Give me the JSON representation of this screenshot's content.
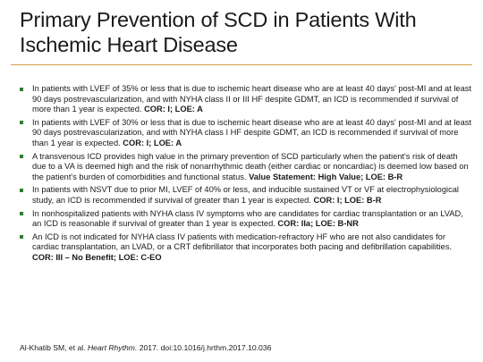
{
  "slide": {
    "title_lines": [
      "Primary Prevention of SCD in Patients With",
      "Ischemic Heart Disease"
    ],
    "bullets": [
      {
        "text": "In patients with LVEF of 35% or less that is due to ischemic heart disease who are at least 40 days' post-MI and at least 90 days postrevascularization, and with NYHA class II or III HF despite GDMT, an ICD is  recommended if survival of more than 1 year is expected. ",
        "bold": "COR: I; LOE: A"
      },
      {
        "text": "In patients with LVEF of 30% or less that is due to ischemic heart disease who are at least 40 days' post-MI and at least 90 days postrevascularization, and with NYHA class I HF despite GDMT, an ICD is recommended if survival of more than 1 year is expected.  ",
        "bold": "COR: I; LOE: A"
      },
      {
        "text": "A transvenous ICD provides high value in the primary prevention of SCD particularly when the patient's risk of death due to a VA is deemed high and the risk of nonarrhythmic death (either cardiac or noncardiac) is deemed low based on the patient's burden of comorbidities and functional status. ",
        "bold": "Value Statement: High Value; LOE: B-R"
      },
      {
        "text": "In patients with NSVT due to prior MI, LVEF of 40% or less, and inducible sustained VT or VF at electrophysiological study, an ICD is recommended if survival of greater than 1 year is expected. ",
        "bold": "COR: I; LOE: B-R"
      },
      {
        "text": "In nonhospitalized patients with NYHA class IV symptoms who are candidates for cardiac transplantation or an LVAD, an ICD is reasonable if survival of greater than 1 year is expected. ",
        "bold": "COR: IIa; LOE: B-NR"
      },
      {
        "text": "An ICD is not indicated for NYHA class IV patients with medication-refractory HF who are not also candidates for cardiac transplantation, an LVAD, or a CRT defibrillator that incorporates both pacing and defibrillation capabilities. ",
        "bold": "COR: III – No Benefit; LOE: C-EO"
      }
    ],
    "citation": {
      "authors": "Al-Khatib SM, et al. ",
      "journal": "Heart Rhythm.",
      "details": " 2017. doi:10.1016/j.hrthm.2017.10.036"
    },
    "colors": {
      "bullet": "#2e7d32",
      "rule": "#d4a24a",
      "text": "#1a1a1a"
    }
  }
}
